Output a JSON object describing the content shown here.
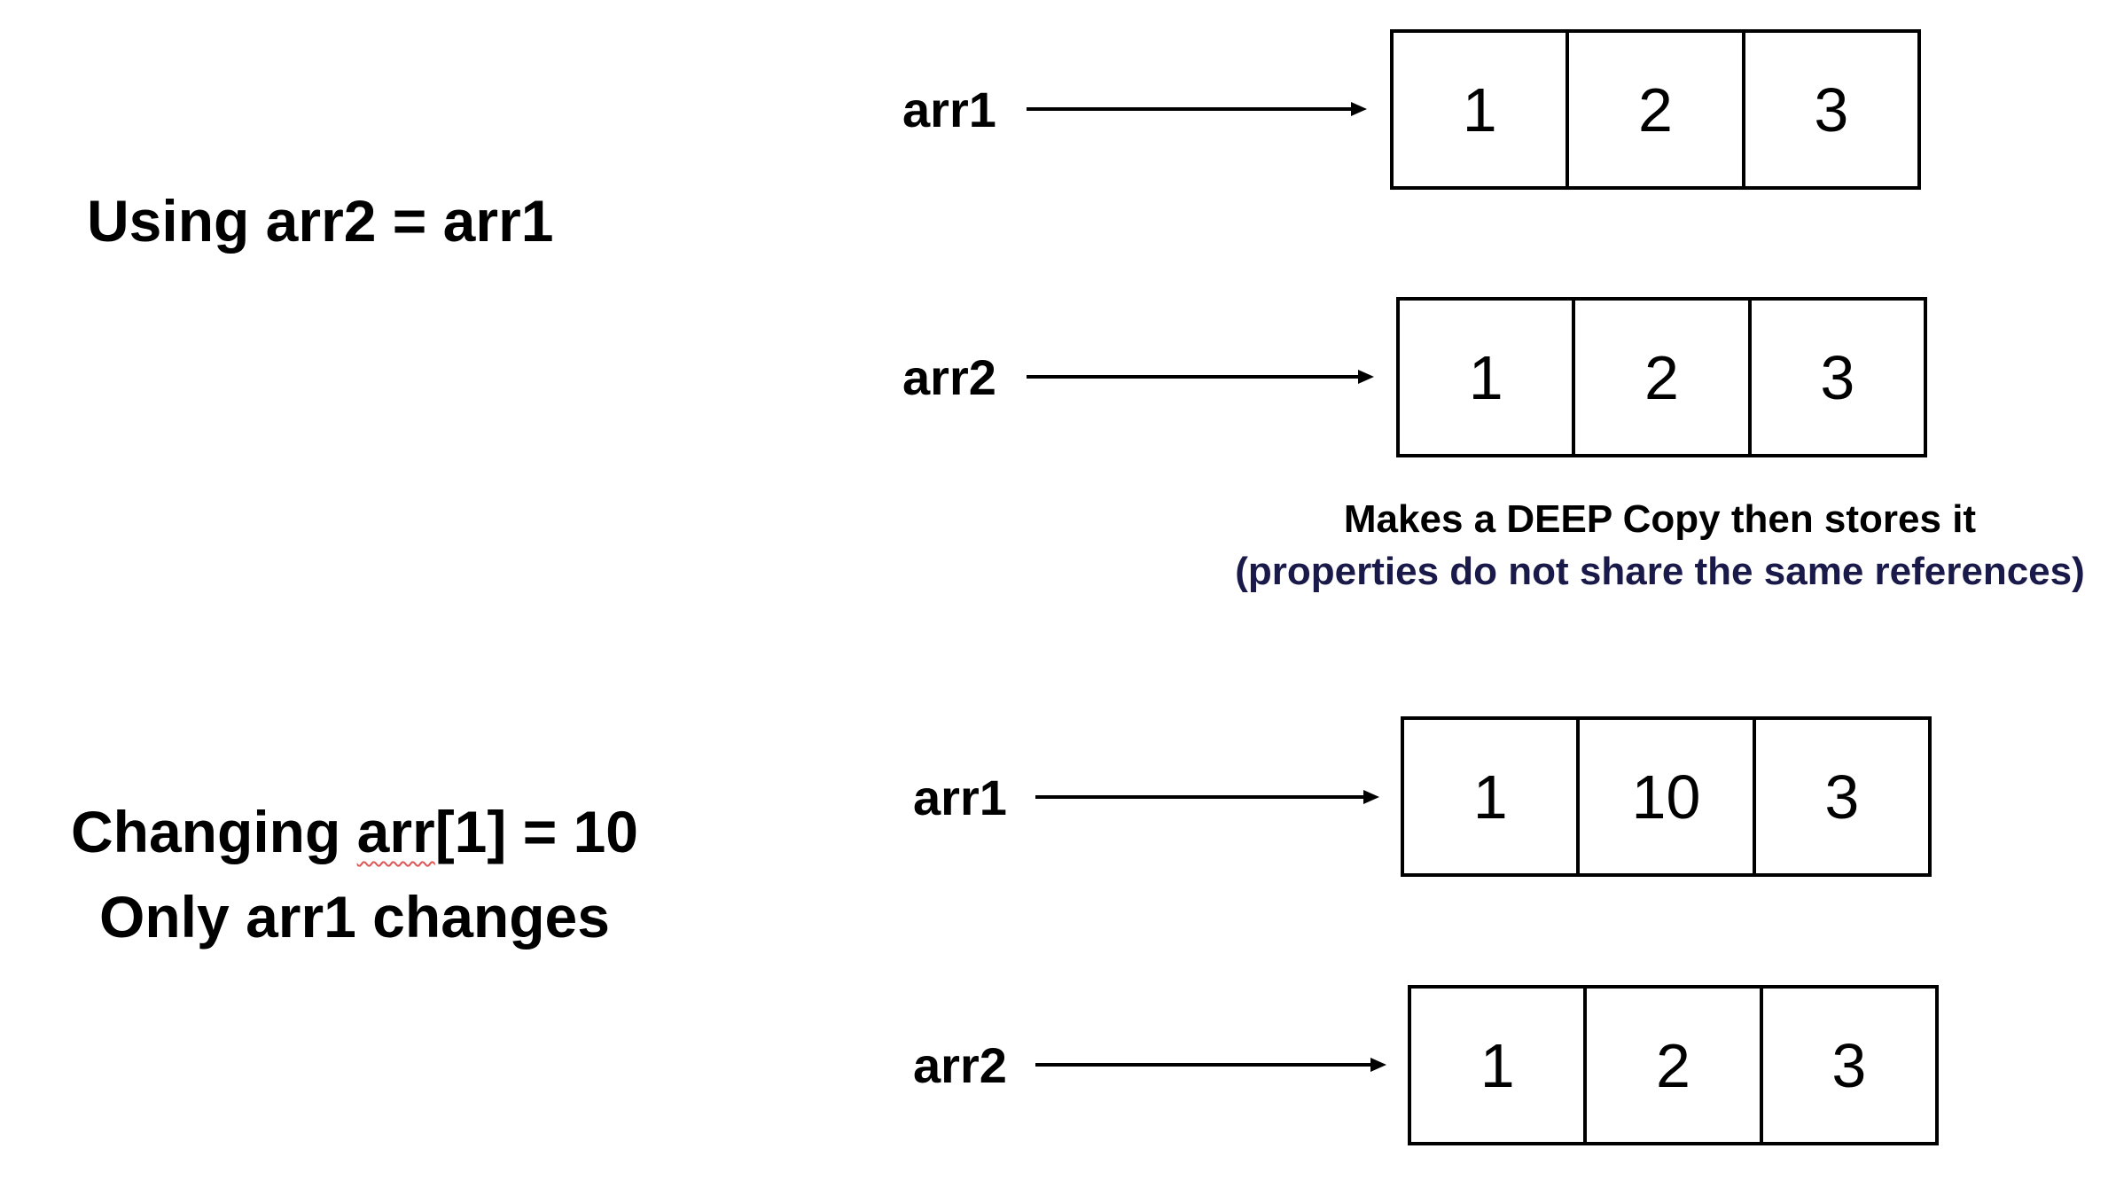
{
  "section1": {
    "heading": "Using arr2 = arr1",
    "rows": [
      {
        "label": "arr1",
        "cells": [
          "1",
          "2",
          "3"
        ]
      },
      {
        "label": "arr2",
        "cells": [
          "1",
          "2",
          "3"
        ]
      }
    ],
    "note_line1": "Makes a DEEP Copy then stores it",
    "note_line2": "(properties do not share the same references)"
  },
  "section2": {
    "heading_part1": "Changing ",
    "heading_underlined": "arr",
    "heading_part2": "[1] = 10",
    "heading_line2": "Only arr1 changes",
    "rows": [
      {
        "label": "arr1",
        "cells": [
          "1",
          "10",
          "3"
        ]
      },
      {
        "label": "arr2",
        "cells": [
          "1",
          "2",
          "3"
        ]
      }
    ]
  },
  "colors": {
    "text": "#000000",
    "note_line2": "#1a1a4a",
    "spellcheck_underline": "#e05555"
  }
}
